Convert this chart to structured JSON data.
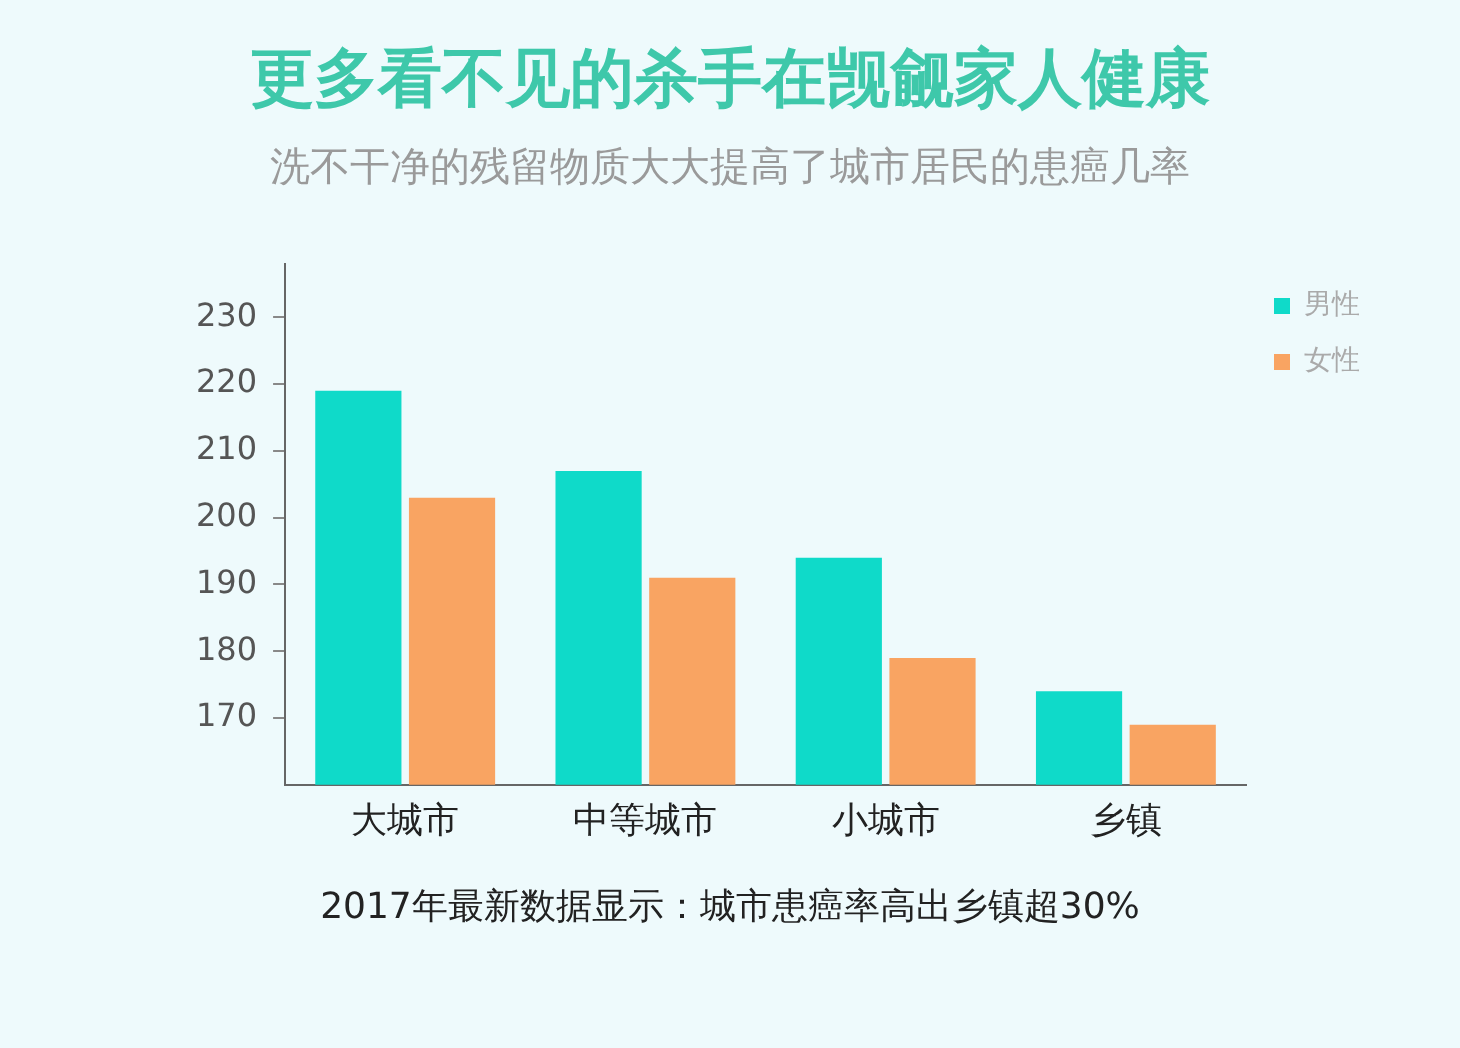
{
  "chart_data": {
    "type": "bar",
    "title": "更多看不见的杀手在觊觎家人健康",
    "subtitle": "洗不干净的残留物质大大提高了城市居民的患癌几率",
    "categories": [
      "大城市",
      "中等城市",
      "小城市",
      "乡镇"
    ],
    "series": [
      {
        "name": "男性",
        "color": "#0fdac9",
        "values": [
          219,
          207,
          194,
          174
        ]
      },
      {
        "name": "女性",
        "color": "#f9a462",
        "values": [
          203,
          191,
          179,
          169
        ]
      }
    ],
    "ylim": [
      160,
      238
    ],
    "yticks": [
      170,
      180,
      190,
      200,
      210,
      220,
      230
    ],
    "grid": false,
    "legend": "top right",
    "annotations": [
      "2017年最新数据显示：城市患癌率高出乡镇超30%"
    ]
  }
}
